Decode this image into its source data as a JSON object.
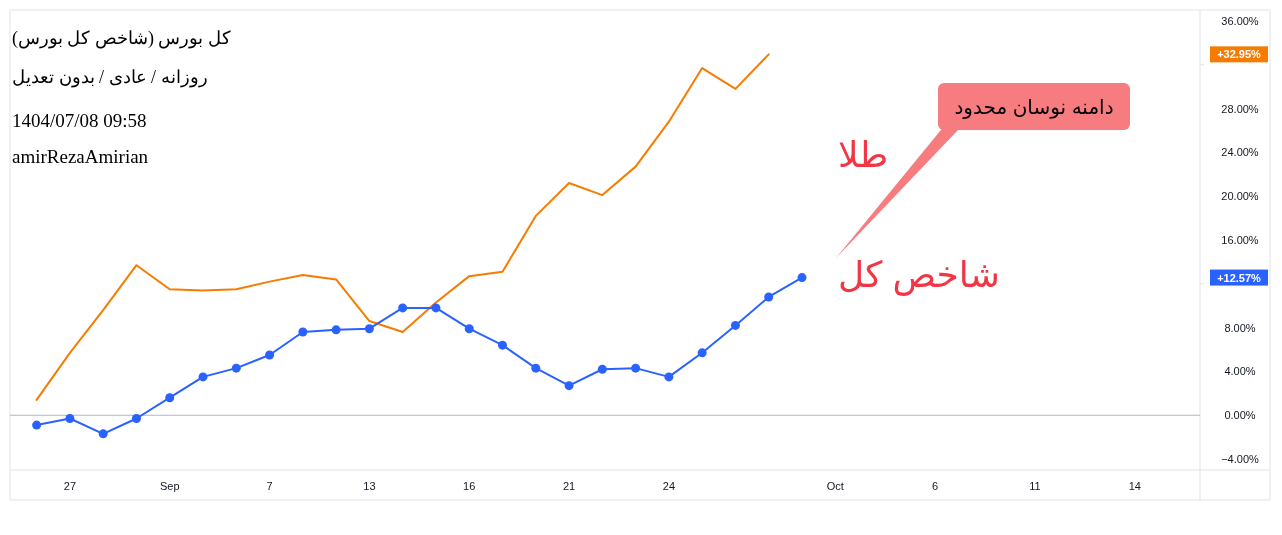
{
  "chart_data": {
    "type": "line",
    "title": "کل بورس (شاخص کل بورس)",
    "subtitle": "روزانه / عادی / بدون تعدیل",
    "annotations": [
      "1404/07/08 09:58",
      "amirRezaAmirian",
      "طلا",
      "شاخص کل",
      "دامنه نوسان محدود",
      "+32.95%",
      "+12.57%"
    ],
    "categories": [
      null,
      "27",
      null,
      null,
      "Sep",
      null,
      null,
      "7",
      null,
      null,
      "13",
      null,
      null,
      "16",
      null,
      null,
      "21",
      null,
      null,
      "24",
      null,
      null,
      null,
      null,
      "Oct",
      null,
      null,
      "6",
      null,
      null,
      "11",
      null,
      null,
      "14",
      null
    ],
    "series": [
      {
        "color": "#f57c00",
        "marker": "none",
        "values": [
          1.4,
          5.7,
          9.6,
          13.7,
          11.5,
          11.4,
          11.5,
          12.2,
          12.8,
          12.4,
          8.6,
          7.6,
          10.3,
          12.7,
          13.1,
          18.2,
          21.2,
          20.1,
          22.7,
          26.8,
          31.7,
          29.8,
          32.95,
          null,
          null,
          null,
          null,
          null,
          null,
          null,
          null,
          null,
          null,
          null,
          null
        ]
      },
      {
        "color": "#2962ff",
        "marker": "circle",
        "values": [
          -0.9,
          -0.3,
          -1.7,
          -0.3,
          1.6,
          3.5,
          4.3,
          5.5,
          7.6,
          7.8,
          7.9,
          9.8,
          9.8,
          7.9,
          6.4,
          4.3,
          2.7,
          4.2,
          4.3,
          3.5,
          5.7,
          8.2,
          10.8,
          12.57,
          null,
          null,
          null,
          null,
          null,
          null,
          null,
          null,
          null,
          null,
          null
        ]
      }
    ],
    "ylim": [
      -5,
      37
    ],
    "yticks": [
      {
        "value": -4,
        "label": "−4.00%"
      },
      {
        "value": 0,
        "label": "0.00%"
      },
      {
        "value": 4,
        "label": "4.00%"
      },
      {
        "value": 8,
        "label": "8.00%"
      },
      {
        "value": 12,
        "label": null
      },
      {
        "value": 16,
        "label": "16.00%"
      },
      {
        "value": 20,
        "label": "20.00%"
      },
      {
        "value": 24,
        "label": "24.00%"
      },
      {
        "value": 28,
        "label": "28.00%"
      },
      {
        "value": 32,
        "label": null
      },
      {
        "value": 36,
        "label": "36.00%"
      }
    ],
    "ref_lines": [
      {
        "axis": "y",
        "value": 0,
        "color": "#b2b5be"
      }
    ]
  }
}
